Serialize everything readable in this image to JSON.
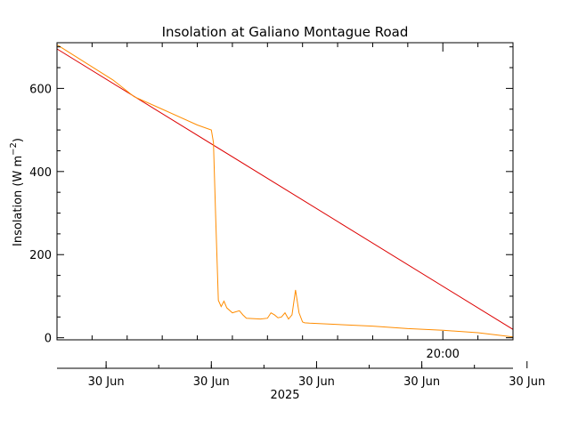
{
  "chart_data": {
    "type": "line",
    "title": "Insolation at Galiano Montague Road",
    "xlabel": "2025",
    "ylabel": "Insolation (W m",
    "ylabel_superscript": "−2",
    "ylabel_suffix": ")",
    "ylim": [
      -5,
      710
    ],
    "xlim": [
      "2025-06-30T19:05",
      "2025-06-30T20:10"
    ],
    "grid": false,
    "y_ticks": [
      0,
      200,
      400,
      600
    ],
    "y_tick_labels": [
      "0",
      "200",
      "400",
      "600"
    ],
    "x_time_ticks": [
      "2025-06-30T20:00"
    ],
    "x_time_tick_labels": [
      "20:00"
    ],
    "x_date_ticks": [
      "2025-06-30T19:12",
      "2025-06-30T19:27",
      "2025-06-30T19:42",
      "2025-06-30T19:57",
      "2025-06-30T20:12"
    ],
    "x_date_tick_labels": [
      "30 Jun",
      "30 Jun",
      "30 Jun",
      "30 Jun",
      "30 Jun"
    ],
    "series": [
      {
        "color": "#dd0000",
        "x": [
          "2025-06-30T19:05",
          "2025-06-30T20:10"
        ],
        "values": [
          695,
          20
        ]
      },
      {
        "color": "#ff8c00",
        "x": [
          "2025-06-30T19:05",
          "2025-06-30T19:13",
          "2025-06-30T19:16",
          "2025-06-30T19:20",
          "2025-06-30T19:25",
          "2025-06-30T19:27",
          "2025-06-30T19:27.3",
          "2025-06-30T19:27.6",
          "2025-06-30T19:28",
          "2025-06-30T19:28.4",
          "2025-06-30T19:28.8",
          "2025-06-30T19:29.2",
          "2025-06-30T19:30",
          "2025-06-30T19:31",
          "2025-06-30T19:31.5",
          "2025-06-30T19:32",
          "2025-06-30T19:34",
          "2025-06-30T19:35",
          "2025-06-30T19:35.5",
          "2025-06-30T19:36",
          "2025-06-30T19:36.5",
          "2025-06-30T19:37",
          "2025-06-30T19:37.5",
          "2025-06-30T19:38",
          "2025-06-30T19:38.5",
          "2025-06-30T19:39",
          "2025-06-30T19:39.5",
          "2025-06-30T19:40",
          "2025-06-30T19:40.3",
          "2025-06-30T19:41",
          "2025-06-30T19:50",
          "2025-06-30T19:55",
          "2025-06-30T20:00",
          "2025-06-30T20:05",
          "2025-06-30T20:10"
        ],
        "values": [
          705,
          620,
          580,
          550,
          512,
          500,
          470,
          300,
          90,
          75,
          88,
          72,
          60,
          65,
          55,
          47,
          45,
          47,
          60,
          55,
          48,
          50,
          60,
          45,
          55,
          115,
          60,
          38,
          36,
          35,
          28,
          22,
          18,
          12,
          2
        ]
      }
    ]
  }
}
